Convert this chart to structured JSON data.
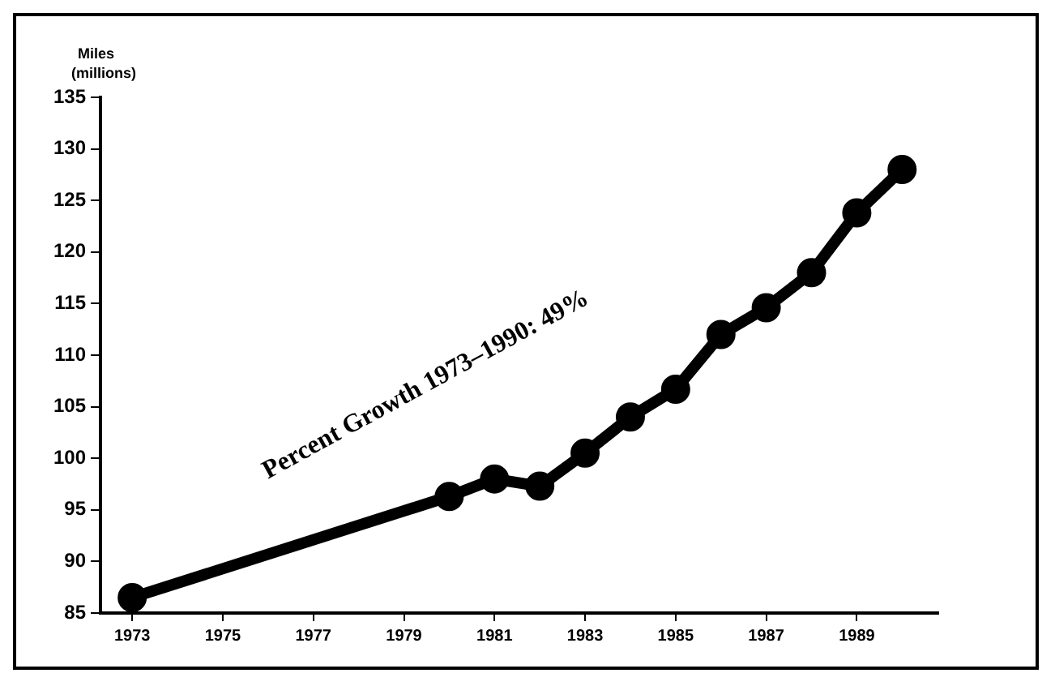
{
  "chart_data": {
    "type": "line",
    "ylabel": "Miles (millions)",
    "annotations": [
      "Percent Growth 1973–1990: 49%"
    ],
    "x": [
      1973,
      1980,
      1981,
      1982,
      1983,
      1984,
      1985,
      1986,
      1987,
      1988,
      1989,
      1990
    ],
    "series": [
      {
        "color": "#000000",
        "values": [
          86.5,
          96.3,
          98,
          97.3,
          100.5,
          104,
          106.7,
          112,
          114.6,
          118,
          123.8,
          128
        ]
      }
    ],
    "xlim": [
      1972.3,
      1990.8
    ],
    "xticks": [
      1973,
      1975,
      1977,
      1979,
      1981,
      1983,
      1985,
      1987,
      1989
    ],
    "ylim": [
      85,
      135
    ],
    "yticks": [
      85,
      90,
      95,
      100,
      105,
      110,
      115,
      120,
      125,
      130,
      135
    ],
    "grid": false,
    "legend": false,
    "marker": "circle",
    "line_style": "solid"
  }
}
